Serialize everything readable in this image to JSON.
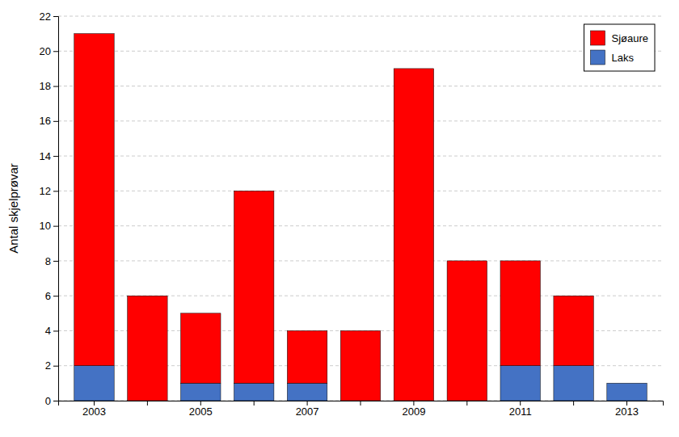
{
  "chart_data": {
    "type": "bar",
    "stacked": true,
    "ylabel": "Antal skjelprøvar",
    "categories": [
      "2003",
      null,
      "2005",
      null,
      "2007",
      null,
      "2009",
      null,
      "2011",
      null,
      "2013"
    ],
    "series": [
      {
        "name": "Laks",
        "color": "#4472C4",
        "values": [
          2,
          0,
          1,
          1,
          1,
          0,
          0,
          0,
          2,
          2,
          1
        ]
      },
      {
        "name": "Sjøaure",
        "color": "#FF0000",
        "values": [
          19,
          6,
          4,
          11,
          3,
          4,
          19,
          8,
          6,
          4,
          0
        ]
      }
    ],
    "ylim": [
      0,
      22
    ],
    "yticks": [
      0,
      2,
      4,
      6,
      8,
      10,
      12,
      14,
      16,
      18,
      20,
      22
    ],
    "grid": true,
    "legend": "upper right"
  }
}
